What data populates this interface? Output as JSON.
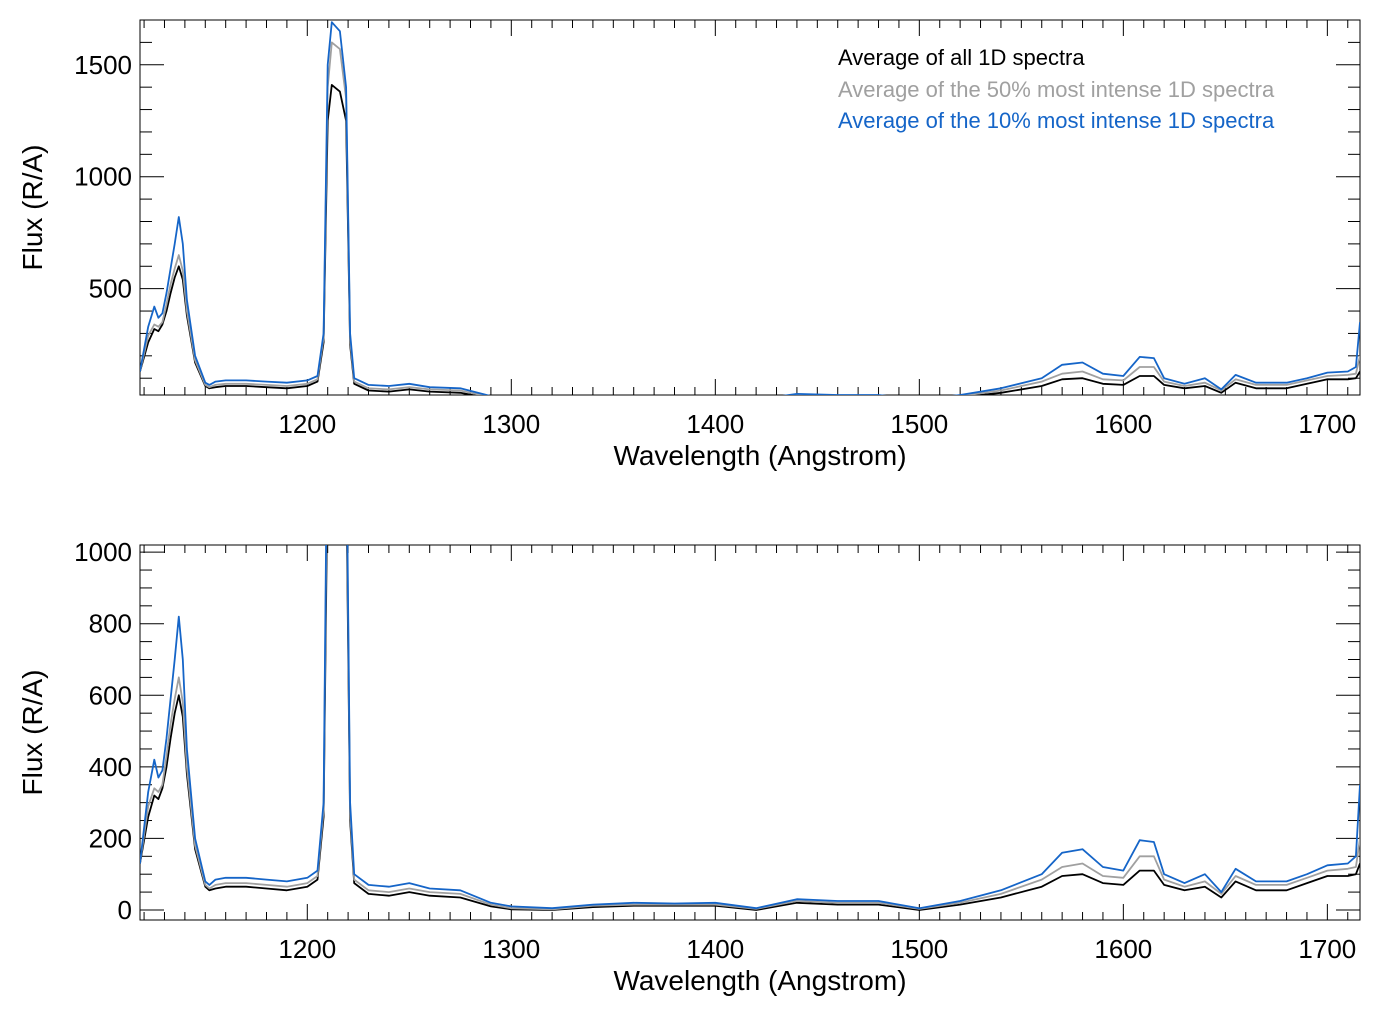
{
  "colors": {
    "all": "#000000",
    "p50": "#a0a0a0",
    "p10": "#1565c8"
  },
  "chart_data": [
    {
      "type": "line",
      "xlabel": "Wavelength (Angstrom)",
      "ylabel": "Flux (R/A)",
      "xlim": [
        1118,
        1716
      ],
      "ylim": [
        25,
        1700
      ],
      "xticks": [
        1200,
        1300,
        1400,
        1500,
        1600,
        1700
      ],
      "yticks": [
        500,
        1000,
        1500
      ],
      "x_minor_step": 10,
      "y_minor_step": 100,
      "legend": {
        "placement": "top-right",
        "entries": [
          "Average of all 1D spectra",
          "Average of the 50% most intense 1D spectra",
          "Average of the 10% most intense 1D spectra"
        ]
      }
    },
    {
      "type": "line",
      "xlabel": "Wavelength (Angstrom)",
      "ylabel": "Flux (R/A)",
      "xlim": [
        1118,
        1716
      ],
      "ylim": [
        -28,
        1020
      ],
      "xticks": [
        1200,
        1300,
        1400,
        1500,
        1600,
        1700
      ],
      "yticks": [
        0,
        200,
        400,
        600,
        800,
        1000
      ],
      "x_minor_step": 10,
      "y_minor_step": 50
    }
  ],
  "series_x": [
    1118,
    1122,
    1125,
    1127,
    1129,
    1131,
    1133,
    1135,
    1137,
    1139,
    1141,
    1145,
    1150,
    1152,
    1155,
    1160,
    1170,
    1180,
    1190,
    1200,
    1205,
    1208,
    1210,
    1212,
    1216,
    1219,
    1221,
    1223,
    1230,
    1240,
    1250,
    1260,
    1275,
    1290,
    1300,
    1320,
    1340,
    1360,
    1380,
    1400,
    1420,
    1440,
    1460,
    1480,
    1500,
    1520,
    1540,
    1560,
    1570,
    1580,
    1590,
    1600,
    1608,
    1615,
    1620,
    1630,
    1640,
    1648,
    1655,
    1665,
    1680,
    1690,
    1700,
    1710,
    1714,
    1716
  ],
  "series": [
    {
      "name": "Average of all 1D spectra",
      "key": "all",
      "values": [
        130,
        260,
        320,
        310,
        340,
        400,
        480,
        550,
        600,
        540,
        380,
        170,
        65,
        55,
        60,
        65,
        65,
        60,
        55,
        65,
        85,
        260,
        1250,
        1410,
        1380,
        1250,
        250,
        75,
        45,
        40,
        50,
        40,
        35,
        10,
        2,
        0,
        8,
        12,
        12,
        12,
        0,
        20,
        15,
        15,
        0,
        15,
        35,
        65,
        95,
        100,
        75,
        70,
        110,
        110,
        70,
        55,
        65,
        35,
        80,
        55,
        55,
        75,
        95,
        95,
        100,
        130
      ]
    },
    {
      "name": "Average of the 50% most intense 1D spectra",
      "key": "p50",
      "values": [
        130,
        290,
        340,
        330,
        350,
        430,
        520,
        590,
        650,
        580,
        400,
        180,
        70,
        60,
        70,
        75,
        75,
        70,
        65,
        75,
        95,
        280,
        1400,
        1600,
        1570,
        1350,
        270,
        85,
        55,
        50,
        60,
        50,
        45,
        15,
        5,
        2,
        12,
        15,
        15,
        15,
        3,
        25,
        20,
        20,
        3,
        20,
        45,
        85,
        120,
        130,
        95,
        90,
        150,
        150,
        85,
        65,
        80,
        45,
        95,
        70,
        70,
        90,
        110,
        115,
        120,
        200
      ]
    },
    {
      "name": "Average of the 10% most intense 1D spectra",
      "key": "p10",
      "values": [
        130,
        330,
        420,
        370,
        390,
        480,
        590,
        700,
        820,
        700,
        450,
        200,
        80,
        70,
        85,
        90,
        90,
        85,
        80,
        90,
        110,
        300,
        1500,
        1690,
        1650,
        1400,
        300,
        100,
        70,
        65,
        75,
        60,
        55,
        20,
        10,
        5,
        15,
        20,
        18,
        20,
        5,
        30,
        25,
        25,
        5,
        25,
        55,
        100,
        160,
        170,
        120,
        110,
        195,
        190,
        100,
        75,
        100,
        50,
        115,
        80,
        80,
        100,
        125,
        130,
        150,
        350
      ]
    }
  ]
}
